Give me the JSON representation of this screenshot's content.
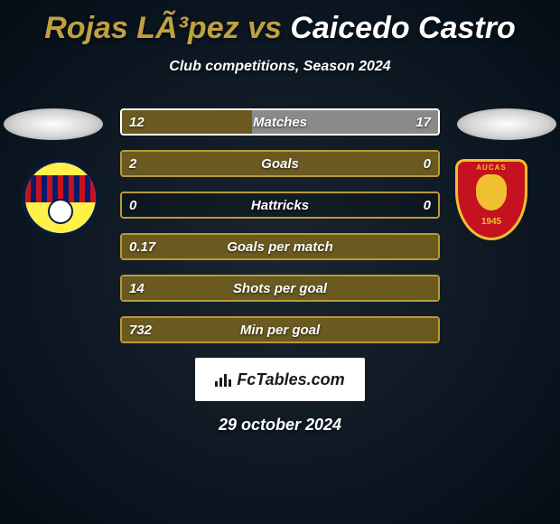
{
  "title": {
    "player1": "Rojas LÃ³pez",
    "vs": "vs",
    "player2": "Caicedo Castro"
  },
  "subtitle": "Club competitions, Season 2024",
  "colors": {
    "player1_accent": "#b89a3a",
    "player2_accent": "#ffffff",
    "row_border_p1": "#b89a3a",
    "row_border_p2": "#ffffff",
    "fill_p1": "#6a5a20",
    "fill_p2": "#8a8a8a"
  },
  "club_badges": {
    "left": {
      "name": "Barcelona SC",
      "code": "BSC"
    },
    "right": {
      "name": "Aucas",
      "year": "1945"
    }
  },
  "rows": [
    {
      "label": "Matches",
      "left_val": "12",
      "right_val": "17",
      "left_pct": 41,
      "right_pct": 59,
      "dominant": "p2"
    },
    {
      "label": "Goals",
      "left_val": "2",
      "right_val": "0",
      "left_pct": 100,
      "right_pct": 0,
      "dominant": "p1"
    },
    {
      "label": "Hattricks",
      "left_val": "0",
      "right_val": "0",
      "left_pct": 0,
      "right_pct": 0,
      "dominant": "p1"
    },
    {
      "label": "Goals per match",
      "left_val": "0.17",
      "right_val": "",
      "left_pct": 100,
      "right_pct": 0,
      "dominant": "p1"
    },
    {
      "label": "Shots per goal",
      "left_val": "14",
      "right_val": "",
      "left_pct": 100,
      "right_pct": 0,
      "dominant": "p1"
    },
    {
      "label": "Min per goal",
      "left_val": "732",
      "right_val": "",
      "left_pct": 100,
      "right_pct": 0,
      "dominant": "p1"
    }
  ],
  "branding": "FcTables.com",
  "date": "29 october 2024"
}
